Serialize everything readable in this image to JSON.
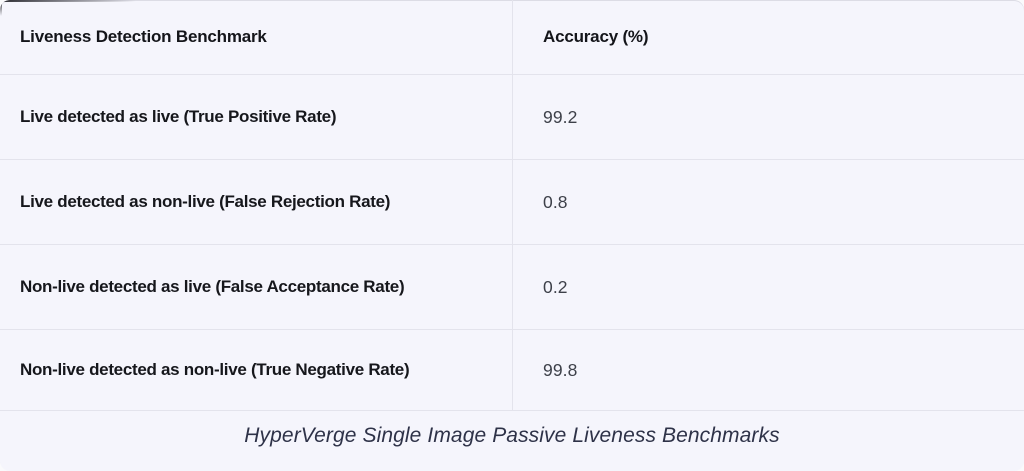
{
  "chart_data": {
    "type": "table",
    "title": "Liveness Detection Benchmark",
    "columns": [
      "Liveness Detection Benchmark",
      "Accuracy (%)"
    ],
    "rows": [
      [
        "Live detected as live (True Positive Rate)",
        99.2
      ],
      [
        "Live detected as non-live (False Rejection Rate)",
        0.8
      ],
      [
        "Non-live detected as live (False Acceptance Rate)",
        0.2
      ],
      [
        "Non-live detected as non-live (True Negative Rate)",
        99.8
      ]
    ],
    "caption": "HyperVerge Single Image Passive Liveness Benchmarks"
  },
  "table": {
    "columns": [
      {
        "label": "Liveness Detection Benchmark"
      },
      {
        "label": "Accuracy (%)"
      }
    ],
    "rows": [
      {
        "label": "Live detected as live (True Positive Rate)",
        "value": "99.2"
      },
      {
        "label": "Live detected as non-live (False Rejection Rate)",
        "value": "0.8"
      },
      {
        "label": "Non-live detected as live (False Acceptance Rate)",
        "value": "0.2"
      },
      {
        "label": "Non-live detected as non-live (True Negative Rate)",
        "value": "99.8"
      }
    ]
  },
  "caption": "HyperVerge Single Image Passive Liveness Benchmarks",
  "colors": {
    "card_background": "#f5f5fc",
    "divider": "#e3e3ec",
    "label_text": "#16171c",
    "value_text": "#3d4049",
    "caption_text": "#2e3248"
  }
}
